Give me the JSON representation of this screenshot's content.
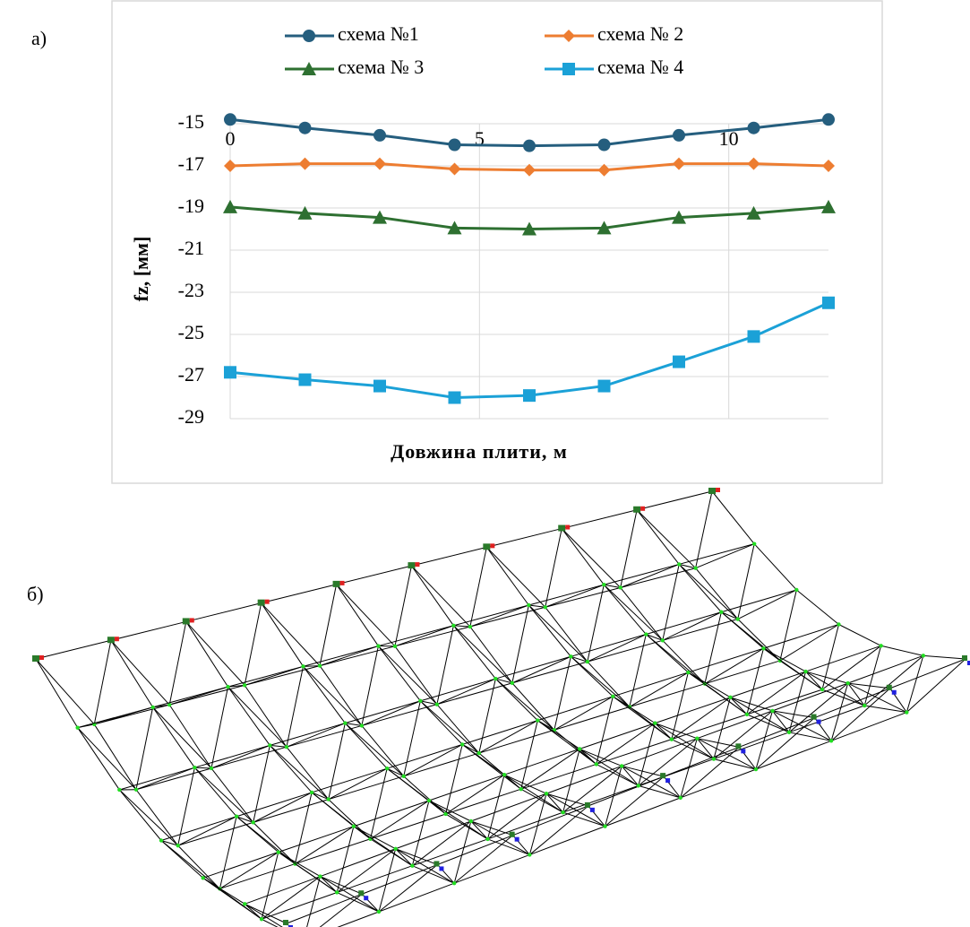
{
  "panel_labels": [
    "а)",
    "б)"
  ],
  "chart_data": {
    "type": "line",
    "x_label": "Довжина  плити,  м",
    "y_label": "fz, [мм]",
    "x": [
      0,
      1.5,
      3,
      4.5,
      6,
      7.5,
      9,
      10.5,
      12
    ],
    "xlim": [
      0,
      12
    ],
    "xticks": [
      0,
      5,
      10
    ],
    "ylim": [
      -29,
      -15
    ],
    "yticks": [
      -15,
      -17,
      -19,
      -21,
      -23,
      -25,
      -27,
      -29
    ],
    "grid": true,
    "legend": "top",
    "series": [
      {
        "name": "схема №1",
        "color": "#255e7e",
        "marker": "circle",
        "values": [
          -14.8,
          -15.2,
          -15.55,
          -16,
          -16.05,
          -16,
          -15.55,
          -15.2,
          -14.8
        ]
      },
      {
        "name": "схема № 2",
        "color": "#ed7d31",
        "marker": "diamond",
        "values": [
          -17,
          -16.9,
          -16.9,
          -17.15,
          -17.2,
          -17.2,
          -16.9,
          -16.9,
          -17
        ]
      },
      {
        "name": "схема № 3",
        "color": "#2e7031",
        "marker": "triangle",
        "values": [
          -18.95,
          -19.25,
          -19.45,
          -19.95,
          -20,
          -19.95,
          -19.45,
          -19.25,
          -18.95
        ]
      },
      {
        "name": "схема № 4",
        "color": "#1ba1d7",
        "marker": "square",
        "values": [
          -26.8,
          -27.15,
          -27.45,
          -28,
          -27.9,
          -27.45,
          -26.3,
          -25.1,
          -23.5
        ]
      }
    ]
  }
}
